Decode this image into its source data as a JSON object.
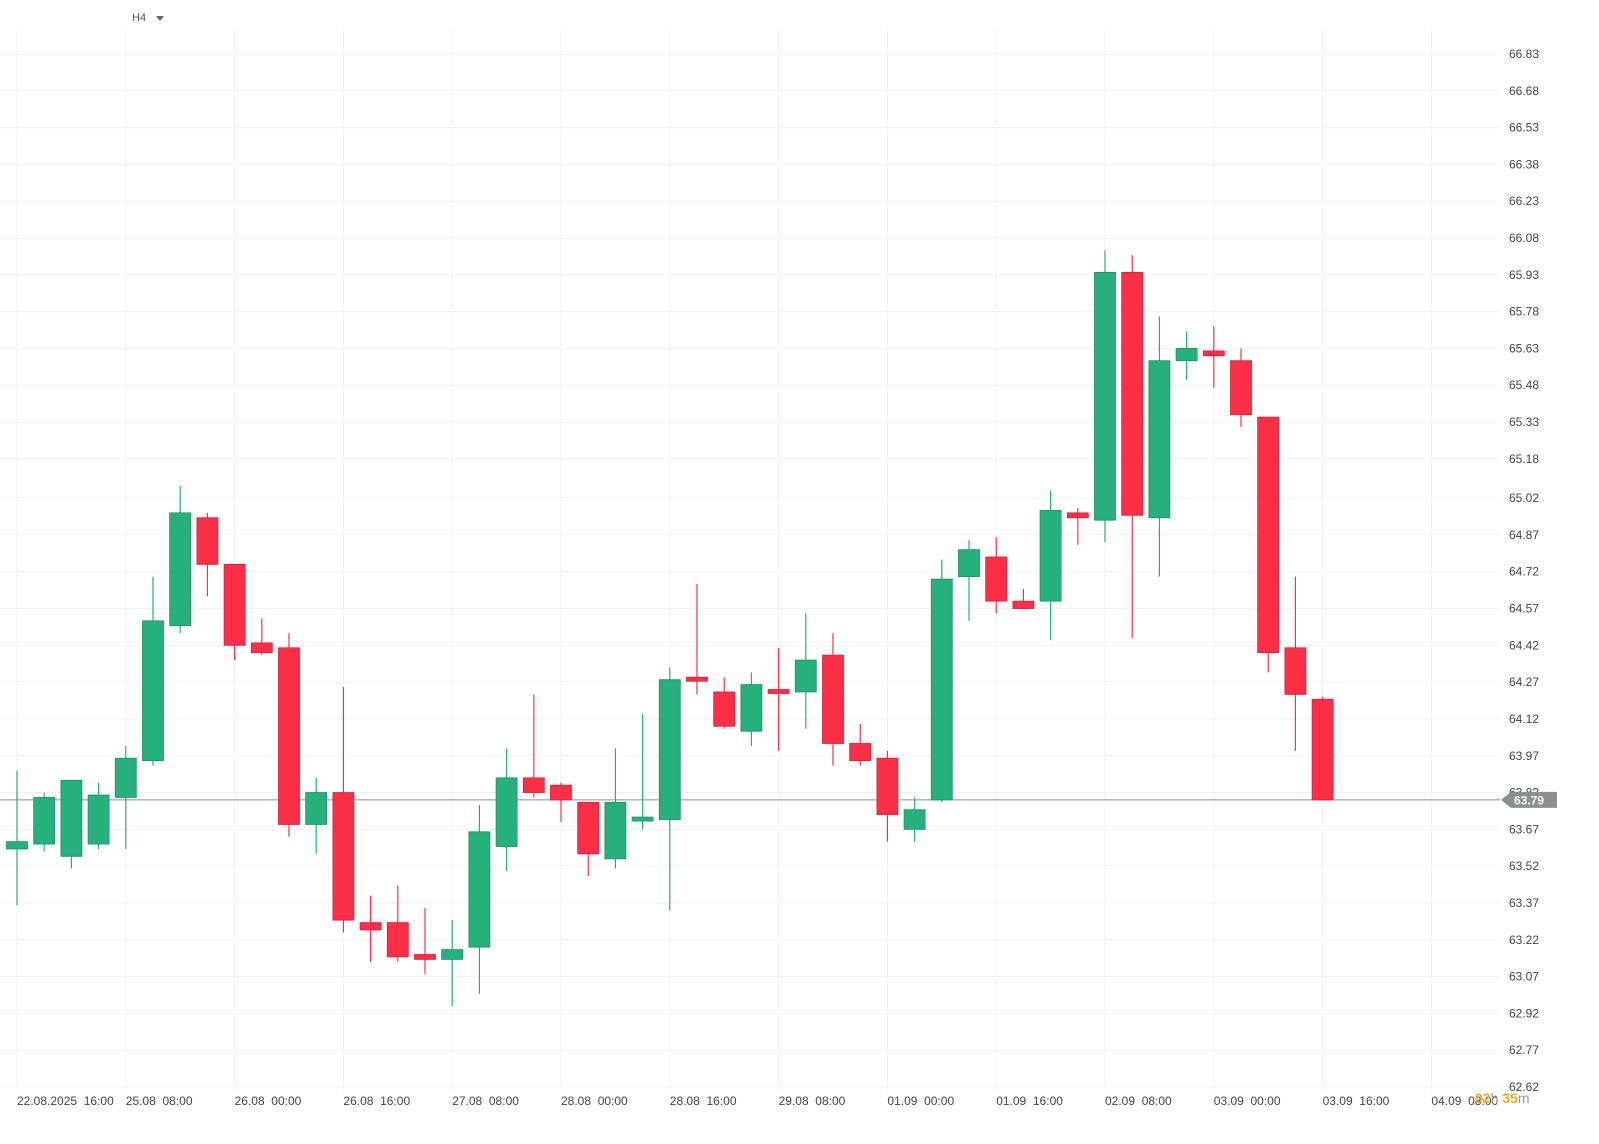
{
  "toolbar": {
    "timeframe": "H4"
  },
  "countdown": {
    "hours": "02",
    "h_unit": "h",
    "minutes": "35",
    "m_unit": "m"
  },
  "colors": {
    "up": "#26b07c",
    "down": "#fd2f47",
    "grid": "#f0f0f0",
    "price_line": "#8a8f94",
    "price_tag": "#8a8f94",
    "axis_text": "#444444"
  },
  "chart_data": {
    "type": "candlestick",
    "timeframe": "H4",
    "ylim": [
      62.62,
      66.9
    ],
    "y_ticks": [
      "66.83",
      "66.68",
      "66.53",
      "66.38",
      "66.23",
      "66.08",
      "65.93",
      "65.78",
      "65.63",
      "65.48",
      "65.33",
      "65.18",
      "65.02",
      "64.87",
      "64.72",
      "64.57",
      "64.42",
      "64.27",
      "64.12",
      "63.97",
      "63.82",
      "63.67",
      "63.52",
      "63.37",
      "63.22",
      "63.07",
      "62.92",
      "62.77",
      "62.62"
    ],
    "x_ticks": [
      "22.08.2025  16:00",
      "25.08  08:00",
      "26.08  00:00",
      "26.08  16:00",
      "27.08  08:00",
      "28.08  00:00",
      "28.08  16:00",
      "29.08  08:00",
      "01.09  00:00",
      "01.09  16:00",
      "02.09  08:00",
      "03.09  00:00",
      "03.09  16:00",
      "04.09  08:00"
    ],
    "x_tick_bar_index": [
      0.5,
      4.5,
      8.5,
      12.5,
      16.5,
      20.5,
      24.5,
      28.5,
      32.5,
      36.5,
      40.5,
      44.5,
      48.5,
      52.5
    ],
    "last_price": "63.79",
    "candles": [
      {
        "o": 63.59,
        "h": 63.91,
        "l": 63.36,
        "c": 63.62
      },
      {
        "o": 63.61,
        "h": 63.82,
        "l": 63.58,
        "c": 63.8
      },
      {
        "o": 63.56,
        "h": 63.87,
        "l": 63.51,
        "c": 63.87
      },
      {
        "o": 63.61,
        "h": 63.86,
        "l": 63.59,
        "c": 63.81
      },
      {
        "o": 63.8,
        "h": 64.01,
        "l": 63.59,
        "c": 63.96
      },
      {
        "o": 63.95,
        "h": 64.7,
        "l": 63.93,
        "c": 64.52
      },
      {
        "o": 64.5,
        "h": 65.07,
        "l": 64.47,
        "c": 64.96
      },
      {
        "o": 64.94,
        "h": 64.96,
        "l": 64.62,
        "c": 64.75
      },
      {
        "o": 64.75,
        "h": 64.75,
        "l": 64.36,
        "c": 64.42
      },
      {
        "o": 64.43,
        "h": 64.53,
        "l": 64.38,
        "c": 64.39
      },
      {
        "o": 64.41,
        "h": 64.47,
        "l": 63.64,
        "c": 63.69
      },
      {
        "o": 63.69,
        "h": 63.88,
        "l": 63.57,
        "c": 63.82
      },
      {
        "o": 63.82,
        "h": 64.25,
        "l": 63.25,
        "c": 63.3
      },
      {
        "o": 63.29,
        "h": 63.4,
        "l": 63.13,
        "c": 63.26
      },
      {
        "o": 63.29,
        "h": 63.44,
        "l": 63.13,
        "c": 63.15
      },
      {
        "o": 63.16,
        "h": 63.35,
        "l": 63.08,
        "c": 63.14
      },
      {
        "o": 63.14,
        "h": 63.3,
        "l": 62.95,
        "c": 63.18
      },
      {
        "o": 63.19,
        "h": 63.77,
        "l": 63.0,
        "c": 63.66
      },
      {
        "o": 63.6,
        "h": 64.0,
        "l": 63.5,
        "c": 63.88
      },
      {
        "o": 63.88,
        "h": 64.22,
        "l": 63.8,
        "c": 63.82
      },
      {
        "o": 63.85,
        "h": 63.86,
        "l": 63.7,
        "c": 63.79
      },
      {
        "o": 63.78,
        "h": 63.78,
        "l": 63.48,
        "c": 63.57
      },
      {
        "o": 63.55,
        "h": 64.0,
        "l": 63.51,
        "c": 63.78
      },
      {
        "o": 63.72,
        "h": 64.14,
        "l": 63.67,
        "c": 63.72
      },
      {
        "o": 63.71,
        "h": 64.33,
        "l": 63.34,
        "c": 64.28
      },
      {
        "o": 64.29,
        "h": 64.67,
        "l": 64.22,
        "c": 64.28
      },
      {
        "o": 64.23,
        "h": 64.29,
        "l": 64.08,
        "c": 64.09
      },
      {
        "o": 64.07,
        "h": 64.31,
        "l": 64.01,
        "c": 64.26
      },
      {
        "o": 64.24,
        "h": 64.41,
        "l": 63.99,
        "c": 64.23
      },
      {
        "o": 64.23,
        "h": 64.55,
        "l": 64.08,
        "c": 64.36
      },
      {
        "o": 64.38,
        "h": 64.47,
        "l": 63.93,
        "c": 64.02
      },
      {
        "o": 64.02,
        "h": 64.1,
        "l": 63.93,
        "c": 63.95
      },
      {
        "o": 63.96,
        "h": 63.99,
        "l": 63.62,
        "c": 63.73
      },
      {
        "o": 63.67,
        "h": 63.8,
        "l": 63.62,
        "c": 63.75
      },
      {
        "o": 63.79,
        "h": 64.77,
        "l": 63.78,
        "c": 64.69
      },
      {
        "o": 64.7,
        "h": 64.85,
        "l": 64.52,
        "c": 64.81
      },
      {
        "o": 64.78,
        "h": 64.86,
        "l": 64.55,
        "c": 64.6
      },
      {
        "o": 64.6,
        "h": 64.65,
        "l": 64.57,
        "c": 64.57
      },
      {
        "o": 64.6,
        "h": 65.05,
        "l": 64.44,
        "c": 64.97
      },
      {
        "o": 64.96,
        "h": 64.98,
        "l": 64.83,
        "c": 64.94
      },
      {
        "o": 64.93,
        "h": 66.03,
        "l": 64.84,
        "c": 65.94
      },
      {
        "o": 65.94,
        "h": 66.01,
        "l": 64.45,
        "c": 64.95
      },
      {
        "o": 64.94,
        "h": 65.76,
        "l": 64.7,
        "c": 65.58
      },
      {
        "o": 65.58,
        "h": 65.7,
        "l": 65.5,
        "c": 65.63
      },
      {
        "o": 65.62,
        "h": 65.72,
        "l": 65.47,
        "c": 65.6
      },
      {
        "o": 65.58,
        "h": 65.63,
        "l": 65.31,
        "c": 65.36
      },
      {
        "o": 65.35,
        "h": 65.35,
        "l": 64.31,
        "c": 64.39
      },
      {
        "o": 64.41,
        "h": 64.7,
        "l": 63.99,
        "c": 64.22
      },
      {
        "o": 64.2,
        "h": 64.21,
        "l": 63.79,
        "c": 63.79
      }
    ]
  }
}
